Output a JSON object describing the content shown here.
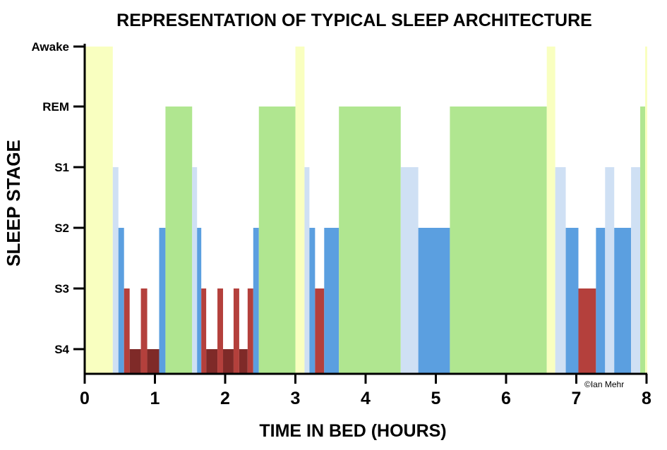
{
  "chart_data": {
    "type": "bar",
    "title": "REPRESENTATION OF TYPICAL SLEEP ARCHITECTURE",
    "xlabel": "TIME IN BED (HOURS)",
    "ylabel": "SLEEP STAGE",
    "xlim": [
      0,
      8
    ],
    "x_ticks": [
      "0",
      "1",
      "2",
      "3",
      "4",
      "5",
      "6",
      "7",
      "8"
    ],
    "y_levels": [
      "S4",
      "S3",
      "S2",
      "S1",
      "REM",
      "Awake"
    ],
    "credit": "©Ian Mehr",
    "colors": {
      "Awake": "#f9ffc0",
      "REM": "#b0e690",
      "S1": "#cfe0f4",
      "S2": "#5b9fe0",
      "S3": "#b4403c",
      "S4": "#7f2a28"
    },
    "segments": [
      {
        "start": 0.0,
        "end": 0.4,
        "stage": "Awake"
      },
      {
        "start": 0.4,
        "end": 0.48,
        "stage": "S1"
      },
      {
        "start": 0.48,
        "end": 0.56,
        "stage": "S2"
      },
      {
        "start": 0.56,
        "end": 0.64,
        "stage": "S3"
      },
      {
        "start": 0.64,
        "end": 0.8,
        "stage": "S4"
      },
      {
        "start": 0.8,
        "end": 0.89,
        "stage": "S3"
      },
      {
        "start": 0.89,
        "end": 1.06,
        "stage": "S4"
      },
      {
        "start": 1.06,
        "end": 1.15,
        "stage": "S2"
      },
      {
        "start": 1.15,
        "end": 1.53,
        "stage": "REM"
      },
      {
        "start": 1.53,
        "end": 1.6,
        "stage": "S1"
      },
      {
        "start": 1.6,
        "end": 1.66,
        "stage": "S2"
      },
      {
        "start": 1.66,
        "end": 1.73,
        "stage": "S3"
      },
      {
        "start": 1.73,
        "end": 1.89,
        "stage": "S4"
      },
      {
        "start": 1.89,
        "end": 1.97,
        "stage": "S3"
      },
      {
        "start": 1.97,
        "end": 2.12,
        "stage": "S4"
      },
      {
        "start": 2.12,
        "end": 2.2,
        "stage": "S3"
      },
      {
        "start": 2.2,
        "end": 2.32,
        "stage": "S4"
      },
      {
        "start": 2.32,
        "end": 2.4,
        "stage": "S3"
      },
      {
        "start": 2.4,
        "end": 2.48,
        "stage": "S2"
      },
      {
        "start": 2.48,
        "end": 3.0,
        "stage": "REM"
      },
      {
        "start": 3.0,
        "end": 3.13,
        "stage": "Awake"
      },
      {
        "start": 3.13,
        "end": 3.2,
        "stage": "S1"
      },
      {
        "start": 3.2,
        "end": 3.28,
        "stage": "S2"
      },
      {
        "start": 3.28,
        "end": 3.41,
        "stage": "S3"
      },
      {
        "start": 3.41,
        "end": 3.62,
        "stage": "S2"
      },
      {
        "start": 3.62,
        "end": 4.5,
        "stage": "REM"
      },
      {
        "start": 4.5,
        "end": 4.75,
        "stage": "S1"
      },
      {
        "start": 4.75,
        "end": 5.2,
        "stage": "S2"
      },
      {
        "start": 5.2,
        "end": 6.58,
        "stage": "REM"
      },
      {
        "start": 6.58,
        "end": 6.7,
        "stage": "Awake"
      },
      {
        "start": 6.7,
        "end": 6.85,
        "stage": "S1"
      },
      {
        "start": 6.85,
        "end": 7.03,
        "stage": "S2"
      },
      {
        "start": 7.03,
        "end": 7.28,
        "stage": "S3"
      },
      {
        "start": 7.28,
        "end": 7.41,
        "stage": "S2"
      },
      {
        "start": 7.41,
        "end": 7.54,
        "stage": "S1"
      },
      {
        "start": 7.54,
        "end": 7.78,
        "stage": "S2"
      },
      {
        "start": 7.78,
        "end": 7.91,
        "stage": "S1"
      },
      {
        "start": 7.91,
        "end": 7.98,
        "stage": "REM"
      },
      {
        "start": 7.98,
        "end": 8.1,
        "stage": "Awake"
      }
    ]
  }
}
